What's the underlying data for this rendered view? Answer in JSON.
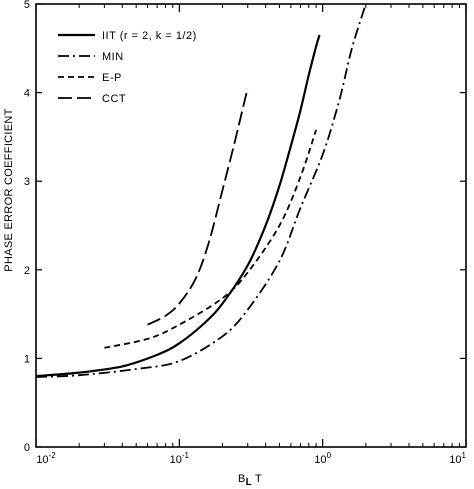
{
  "chart_data": {
    "type": "line",
    "xlabel": "B",
    "xlabel_subscript": "L",
    "xlabel_suffix": "T",
    "ylabel": "PHASE ERROR COEFFICIENT",
    "x_scale": "log",
    "xlim": [
      0.01,
      10
    ],
    "ylim": [
      0,
      5
    ],
    "x_ticks": [
      {
        "value": 0.01,
        "base": "10",
        "exp": "-2"
      },
      {
        "value": 0.1,
        "base": "10",
        "exp": "-1"
      },
      {
        "value": 1,
        "base": "10",
        "exp": "0"
      },
      {
        "value": 10,
        "base": "10",
        "exp": "1"
      }
    ],
    "y_ticks": [
      {
        "value": 0,
        "label": "0"
      },
      {
        "value": 1,
        "label": "1"
      },
      {
        "value": 2,
        "label": "2"
      },
      {
        "value": 3,
        "label": "3"
      },
      {
        "value": 4,
        "label": "4"
      },
      {
        "value": 5,
        "label": "5"
      }
    ],
    "legend_position": "top-left",
    "series": [
      {
        "name": "IIT (r = 2, k = 1/2)",
        "dash": "solid",
        "x": [
          0.01,
          0.02,
          0.04,
          0.07,
          0.1,
          0.15,
          0.2,
          0.3,
          0.4,
          0.5,
          0.6,
          0.7,
          0.8,
          0.9,
          0.95
        ],
        "y": [
          0.8,
          0.84,
          0.91,
          1.04,
          1.17,
          1.4,
          1.62,
          2.05,
          2.5,
          2.95,
          3.4,
          3.8,
          4.2,
          4.52,
          4.65
        ]
      },
      {
        "name": "MIN",
        "dash": "dash-dot",
        "x": [
          0.01,
          0.02,
          0.05,
          0.1,
          0.2,
          0.3,
          0.5,
          0.7,
          1.0,
          1.3,
          1.6,
          2.0
        ],
        "y": [
          0.79,
          0.81,
          0.88,
          0.97,
          1.25,
          1.55,
          2.1,
          2.7,
          3.3,
          3.9,
          4.5,
          5.0
        ]
      },
      {
        "name": "E-P",
        "dash": "dashed",
        "x": [
          0.03,
          0.06,
          0.1,
          0.2,
          0.3,
          0.5,
          0.7,
          0.9
        ],
        "y": [
          1.12,
          1.22,
          1.38,
          1.68,
          1.97,
          2.5,
          3.05,
          3.58
        ]
      },
      {
        "name": "CCT",
        "dash": "long-dash",
        "x": [
          0.06,
          0.08,
          0.1,
          0.13,
          0.16,
          0.2,
          0.24,
          0.28,
          0.3
        ],
        "y": [
          1.38,
          1.48,
          1.62,
          1.9,
          2.3,
          2.9,
          3.4,
          3.85,
          4.05
        ]
      }
    ]
  }
}
